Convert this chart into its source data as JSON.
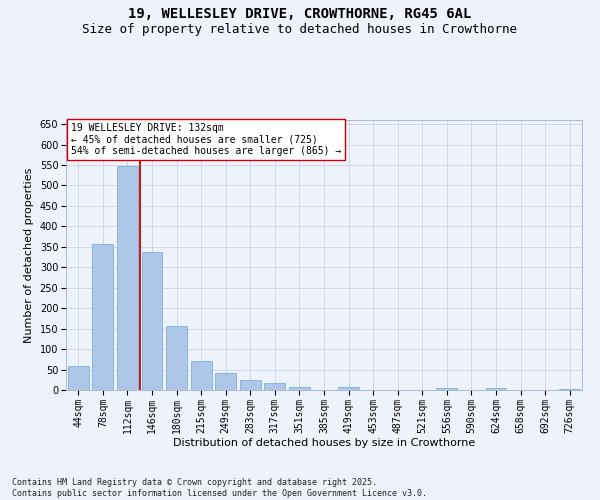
{
  "title": "19, WELLESLEY DRIVE, CROWTHORNE, RG45 6AL",
  "subtitle": "Size of property relative to detached houses in Crowthorne",
  "xlabel": "Distribution of detached houses by size in Crowthorne",
  "ylabel": "Number of detached properties",
  "categories": [
    "44sqm",
    "78sqm",
    "112sqm",
    "146sqm",
    "180sqm",
    "215sqm",
    "249sqm",
    "283sqm",
    "317sqm",
    "351sqm",
    "385sqm",
    "419sqm",
    "453sqm",
    "487sqm",
    "521sqm",
    "556sqm",
    "590sqm",
    "624sqm",
    "658sqm",
    "692sqm",
    "726sqm"
  ],
  "values": [
    58,
    356,
    547,
    337,
    157,
    70,
    42,
    25,
    18,
    7,
    0,
    8,
    0,
    0,
    0,
    5,
    0,
    5,
    0,
    0,
    3
  ],
  "bar_color": "#aec6e8",
  "bar_edge_color": "#6aaad4",
  "grid_color": "#c8d4e8",
  "background_color": "#eef2fb",
  "vline_x_index": 2.5,
  "vline_color": "#cc0000",
  "annotation_text": "19 WELLESLEY DRIVE: 132sqm\n← 45% of detached houses are smaller (725)\n54% of semi-detached houses are larger (865) →",
  "annotation_box_color": "#ffffff",
  "annotation_box_edge_color": "#cc0000",
  "ylim": [
    0,
    660
  ],
  "yticks": [
    0,
    50,
    100,
    150,
    200,
    250,
    300,
    350,
    400,
    450,
    500,
    550,
    600,
    650
  ],
  "footer": "Contains HM Land Registry data © Crown copyright and database right 2025.\nContains public sector information licensed under the Open Government Licence v3.0.",
  "title_fontsize": 10,
  "subtitle_fontsize": 9,
  "xlabel_fontsize": 8,
  "ylabel_fontsize": 8,
  "tick_fontsize": 7,
  "footer_fontsize": 6,
  "ann_fontsize": 7
}
